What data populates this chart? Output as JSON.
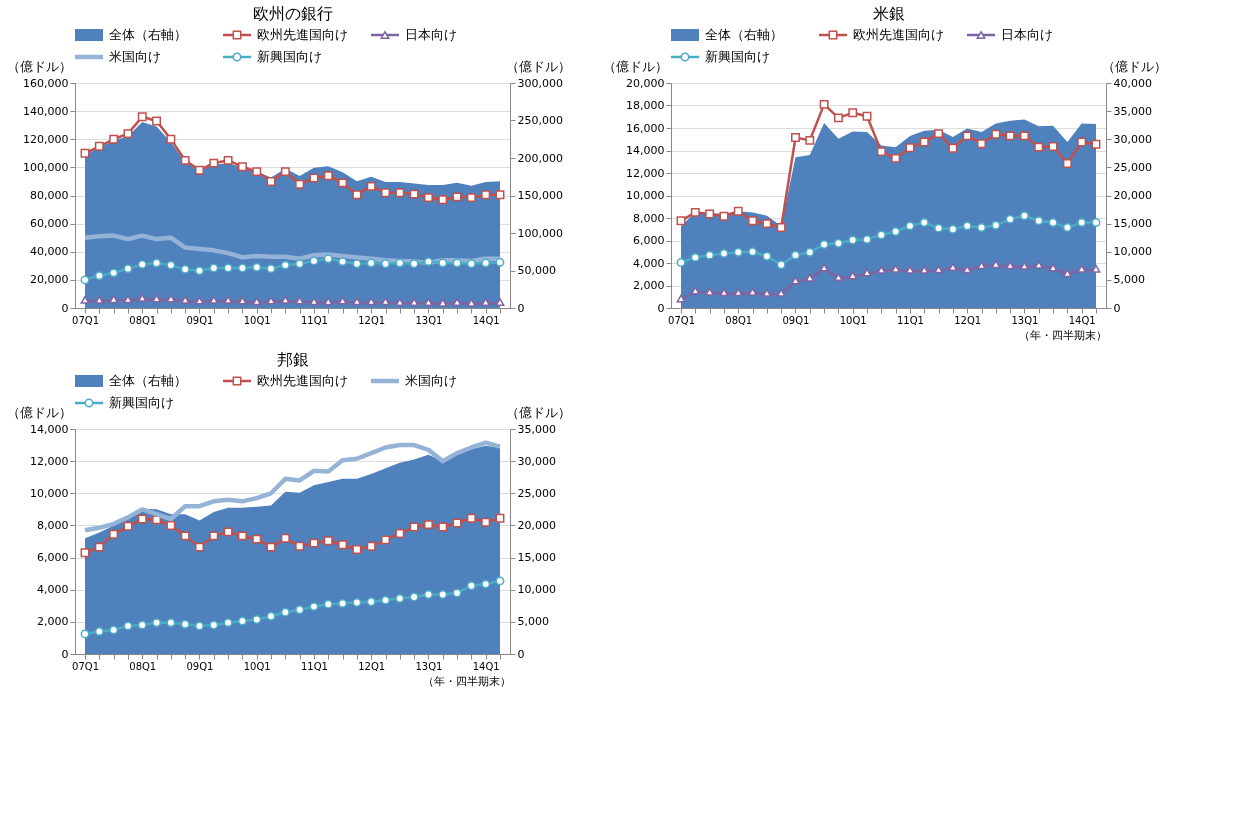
{
  "chart_data": [
    {
      "type": "line",
      "title": "欧州の銀行",
      "ylabel": "（億ドル）",
      "y2label": "（億ドル）",
      "grid": "y",
      "legend": "top",
      "categories": [
        "07Q1",
        null,
        null,
        null,
        "08Q1",
        null,
        null,
        null,
        "09Q1",
        null,
        null,
        null,
        "10Q1",
        null,
        null,
        null,
        "11Q1",
        null,
        null,
        null,
        "12Q1",
        null,
        null,
        null,
        "13Q1",
        null,
        null,
        null,
        "14Q1",
        null
      ],
      "ylim": [
        0,
        160000
      ],
      "yticks": [
        {
          "value": 0,
          "label": "0"
        },
        {
          "value": 20000,
          "label": "20,000"
        },
        {
          "value": 40000,
          "label": "40,000"
        },
        {
          "value": 60000,
          "label": "60,000"
        },
        {
          "value": 80000,
          "label": "80,000"
        },
        {
          "value": 100000,
          "label": "100,000"
        },
        {
          "value": 120000,
          "label": "120,000"
        },
        {
          "value": 140000,
          "label": "140,000"
        },
        {
          "value": 160000,
          "label": "160,000"
        }
      ],
      "y2lim": [
        0,
        300000
      ],
      "y2ticks": [
        {
          "value": 0,
          "label": "0"
        },
        {
          "value": 50000,
          "label": "50,000"
        },
        {
          "value": 100000,
          "label": "100,000"
        },
        {
          "value": 150000,
          "label": "150,000"
        },
        {
          "value": 200000,
          "label": "200,000"
        },
        {
          "value": 250000,
          "label": "250,000"
        },
        {
          "value": 300000,
          "label": "300,000"
        }
      ],
      "series": [
        {
          "name": "全体（右軸）",
          "type": "area",
          "axis": "y2",
          "color": "#4f81bd",
          "values": [
            204000,
            214000,
            223000,
            229000,
            248000,
            242000,
            221000,
            195000,
            186000,
            191000,
            193000,
            188000,
            182000,
            174000,
            186000,
            176000,
            187000,
            189000,
            181000,
            169000,
            175000,
            168000,
            168000,
            166000,
            164000,
            164000,
            167000,
            163000,
            168000,
            169000
          ]
        },
        {
          "name": "欧州先進国向け",
          "color": "#c0504d",
          "marker": "square",
          "values": [
            110000,
            115000,
            120000,
            124000,
            136000,
            133000,
            120000,
            105000,
            98000,
            103000,
            105000,
            100500,
            97000,
            90000,
            97000,
            88000,
            92500,
            94000,
            89000,
            80500,
            86500,
            82000,
            82000,
            81000,
            78500,
            77000,
            79000,
            78500,
            80500,
            80500
          ]
        },
        {
          "name": "日本向け",
          "color": "#8064a2",
          "marker": "triangle",
          "values": [
            5000,
            5000,
            5500,
            5500,
            6500,
            6000,
            6000,
            5000,
            4500,
            5000,
            5000,
            4500,
            4000,
            4500,
            5000,
            4500,
            4000,
            4000,
            4500,
            4000,
            4000,
            4000,
            3500,
            3500,
            3500,
            3000,
            3500,
            3000,
            3500,
            3500
          ]
        },
        {
          "name": "米国向け",
          "color": "#95b3d7",
          "marker": "none",
          "values": [
            50000,
            51000,
            51500,
            49000,
            51500,
            49000,
            50000,
            43000,
            42000,
            41000,
            39000,
            36000,
            37000,
            36500,
            36500,
            35000,
            37500,
            38000,
            37000,
            36000,
            35000,
            34000,
            33500,
            33000,
            32000,
            34000,
            34000,
            33500,
            35000,
            35000
          ]
        },
        {
          "name": "新興国向け",
          "color": "#4bacc6",
          "marker": "circle",
          "values": [
            20000,
            23000,
            25000,
            28000,
            31000,
            32000,
            30500,
            27500,
            26500,
            28500,
            28500,
            28500,
            29000,
            28000,
            30500,
            31500,
            33500,
            35000,
            33000,
            31500,
            32000,
            31500,
            32000,
            31500,
            33000,
            32000,
            32000,
            31500,
            32000,
            32500
          ]
        }
      ]
    },
    {
      "type": "line",
      "title": "米銀",
      "ylabel": "（億ドル）",
      "y2label": "（億ドル）",
      "xlabel": "（年・四半期末）",
      "grid": "y",
      "legend": "top",
      "categories": [
        "07Q1",
        null,
        null,
        null,
        "08Q1",
        null,
        null,
        null,
        "09Q1",
        null,
        null,
        null,
        "10Q1",
        null,
        null,
        null,
        "11Q1",
        null,
        null,
        null,
        "12Q1",
        null,
        null,
        null,
        "13Q1",
        null,
        null,
        null,
        "14Q1",
        null
      ],
      "ylim": [
        0,
        20000
      ],
      "yticks": [
        {
          "value": 0,
          "label": "0"
        },
        {
          "value": 2000,
          "label": "2,000"
        },
        {
          "value": 4000,
          "label": "4,000"
        },
        {
          "value": 6000,
          "label": "6,000"
        },
        {
          "value": 8000,
          "label": "8,000"
        },
        {
          "value": 10000,
          "label": "10,000"
        },
        {
          "value": 12000,
          "label": "12,000"
        },
        {
          "value": 14000,
          "label": "14,000"
        },
        {
          "value": 16000,
          "label": "16,000"
        },
        {
          "value": 18000,
          "label": "18,000"
        },
        {
          "value": 20000,
          "label": "20,000"
        }
      ],
      "y2lim": [
        0,
        40000
      ],
      "y2ticks": [
        {
          "value": 0,
          "label": "0"
        },
        {
          "value": 5000,
          "label": "5,000"
        },
        {
          "value": 10000,
          "label": "10,000"
        },
        {
          "value": 15000,
          "label": "15,000"
        },
        {
          "value": 20000,
          "label": "20,000"
        },
        {
          "value": 25000,
          "label": "25,000"
        },
        {
          "value": 30000,
          "label": "30,000"
        },
        {
          "value": 35000,
          "label": "35,000"
        },
        {
          "value": 40000,
          "label": "40,000"
        }
      ],
      "series": [
        {
          "name": "全体（右軸）",
          "type": "area",
          "axis": "y2",
          "color": "#4f81bd",
          "values": [
            14600,
            17000,
            16800,
            16800,
            17200,
            17000,
            16400,
            14600,
            26800,
            27200,
            32900,
            30100,
            31400,
            31300,
            28900,
            28600,
            30600,
            31500,
            31700,
            30400,
            31900,
            31300,
            32800,
            33300,
            33500,
            32300,
            32400,
            29500,
            32800,
            32700
          ]
        },
        {
          "name": "欧州先進国向け",
          "color": "#c0504d",
          "marker": "square",
          "values": [
            7750,
            8500,
            8350,
            8150,
            8600,
            7750,
            7500,
            7150,
            15150,
            14900,
            18100,
            16900,
            17350,
            17050,
            13900,
            13300,
            14250,
            14750,
            15500,
            14200,
            15300,
            14600,
            15450,
            15300,
            15300,
            14300,
            14350,
            12850,
            14750,
            14550
          ]
        },
        {
          "name": "日本向け",
          "color": "#8064a2",
          "marker": "triangle",
          "values": [
            750,
            1450,
            1350,
            1300,
            1300,
            1350,
            1250,
            1250,
            2350,
            2600,
            3500,
            2650,
            2800,
            3050,
            3300,
            3400,
            3300,
            3300,
            3350,
            3550,
            3350,
            3700,
            3800,
            3700,
            3650,
            3750,
            3500,
            3000,
            3400,
            3400
          ]
        },
        {
          "name": "新興国向け",
          "color": "#4bacc6",
          "marker": "circle",
          "values": [
            4050,
            4500,
            4700,
            4850,
            4950,
            5000,
            4600,
            3850,
            4700,
            4950,
            5650,
            5750,
            6050,
            6100,
            6500,
            6800,
            7300,
            7600,
            7100,
            7000,
            7300,
            7150,
            7350,
            7900,
            8200,
            7750,
            7600,
            7150,
            7600,
            7600
          ]
        }
      ]
    },
    {
      "type": "line",
      "title": "邦銀",
      "ylabel": "（億ドル）",
      "y2label": "（億ドル）",
      "xlabel": "（年・四半期末）",
      "grid": "y",
      "legend": "top",
      "categories": [
        "07Q1",
        null,
        null,
        null,
        "08Q1",
        null,
        null,
        null,
        "09Q1",
        null,
        null,
        null,
        "10Q1",
        null,
        null,
        null,
        "11Q1",
        null,
        null,
        null,
        "12Q1",
        null,
        null,
        null,
        "13Q1",
        null,
        null,
        null,
        "14Q1",
        null
      ],
      "ylim": [
        0,
        14000
      ],
      "yticks": [
        {
          "value": 0,
          "label": "0"
        },
        {
          "value": 2000,
          "label": "2,000"
        },
        {
          "value": 4000,
          "label": "4,000"
        },
        {
          "value": 6000,
          "label": "6,000"
        },
        {
          "value": 8000,
          "label": "8,000"
        },
        {
          "value": 10000,
          "label": "10,000"
        },
        {
          "value": 12000,
          "label": "12,000"
        },
        {
          "value": 14000,
          "label": "14,000"
        }
      ],
      "y2lim": [
        0,
        35000
      ],
      "y2ticks": [
        {
          "value": 0,
          "label": "0"
        },
        {
          "value": 5000,
          "label": "5,000"
        },
        {
          "value": 10000,
          "label": "10,000"
        },
        {
          "value": 15000,
          "label": "15,000"
        },
        {
          "value": 20000,
          "label": "20,000"
        },
        {
          "value": 25000,
          "label": "25,000"
        },
        {
          "value": 30000,
          "label": "30,000"
        },
        {
          "value": 35000,
          "label": "35,000"
        }
      ],
      "series": [
        {
          "name": "全体（右軸）",
          "type": "area",
          "axis": "y2",
          "color": "#4f81bd",
          "values": [
            18000,
            18900,
            20000,
            21000,
            22600,
            22500,
            21750,
            21750,
            20750,
            22100,
            22750,
            22750,
            22900,
            23100,
            25250,
            25100,
            26250,
            26750,
            27250,
            27250,
            28000,
            28900,
            29750,
            30250,
            31000,
            30000,
            31000,
            31900,
            32400,
            32100
          ]
        },
        {
          "name": "欧州先進国向け",
          "color": "#c0504d",
          "marker": "square",
          "values": [
            6300,
            6650,
            7450,
            7950,
            8400,
            8350,
            8000,
            7350,
            6650,
            7350,
            7600,
            7350,
            7150,
            6650,
            7200,
            6700,
            6900,
            7050,
            6800,
            6500,
            6700,
            7100,
            7500,
            7900,
            8050,
            7900,
            8150,
            8450,
            8200,
            8450
          ]
        },
        {
          "name": "米国向け",
          "color": "#95b3d7",
          "marker": "none",
          "values": [
            7700,
            7850,
            8100,
            8500,
            9000,
            8700,
            8400,
            9200,
            9200,
            9500,
            9600,
            9500,
            9700,
            10000,
            10900,
            10800,
            11400,
            11350,
            12050,
            12150,
            12500,
            12850,
            13000,
            13000,
            12700,
            12000,
            12500,
            12850,
            13150,
            12900
          ]
        },
        {
          "name": "新興国向け",
          "color": "#4bacc6",
          "marker": "circle",
          "values": [
            1250,
            1400,
            1500,
            1750,
            1800,
            1950,
            1950,
            1850,
            1750,
            1800,
            1950,
            2050,
            2150,
            2350,
            2600,
            2750,
            2950,
            3100,
            3150,
            3200,
            3250,
            3350,
            3450,
            3550,
            3700,
            3700,
            3800,
            4250,
            4350,
            4550
          ]
        }
      ]
    }
  ]
}
